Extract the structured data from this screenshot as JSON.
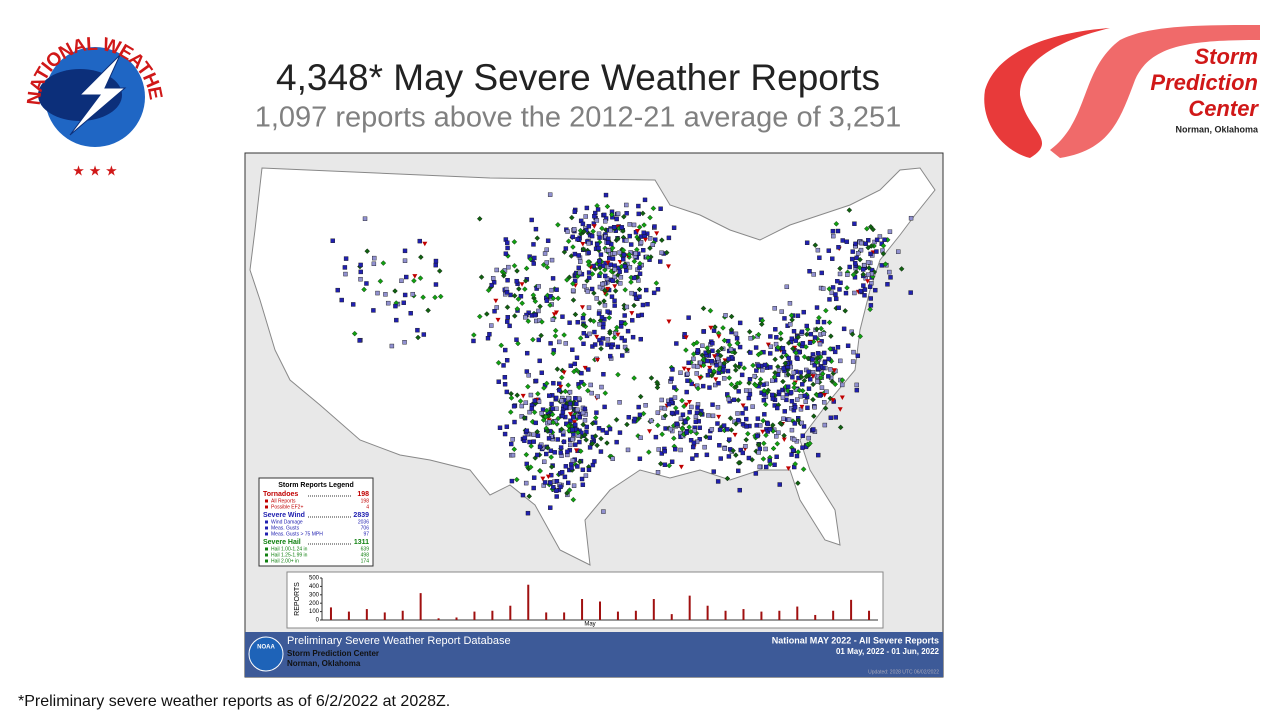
{
  "header": {
    "title": "4,348* May Severe Weather Reports",
    "subtitle": "1,097 reports above the 2012-21 average of 3,251"
  },
  "nws_logo": {
    "ring": "NATIONAL WEATHER SERVICE"
  },
  "spc_logo": {
    "lines": [
      "Storm",
      "Prediction",
      "Center"
    ],
    "location": "Norman, Oklahoma"
  },
  "legend": {
    "title": "Storm Reports Legend",
    "groups": [
      {
        "label": "Tornadoes",
        "count": 198,
        "color": "#c00000",
        "items": [
          {
            "label": "All Reports",
            "count": 198
          },
          {
            "label": "Possible EF2+",
            "count": 4
          }
        ]
      },
      {
        "label": "Severe Wind",
        "count": 2839,
        "color": "#2020b0",
        "items": [
          {
            "label": "Wind Damage",
            "count": 2036
          },
          {
            "label": "Meas. Gusts",
            "count": 706
          },
          {
            "label": "Meas. Gusts > 75 MPH",
            "count": 97
          }
        ]
      },
      {
        "label": "Severe Hail",
        "count": 1311,
        "color": "#108010",
        "items": [
          {
            "label": "Hail 1.00-1.24 in",
            "count": 639
          },
          {
            "label": "Hail 1.25-1.99 in",
            "count": 498
          },
          {
            "label": "Hail 2.00+ in",
            "count": 174
          }
        ]
      }
    ]
  },
  "chart_data": {
    "type": "bar",
    "ylabel": "REPORTS",
    "xlabel": "May",
    "color": "#a01010",
    "values": [
      150,
      100,
      130,
      90,
      110,
      320,
      20,
      30,
      100,
      110,
      170,
      420,
      90,
      90,
      250,
      220,
      100,
      110,
      250,
      70,
      290,
      170,
      110,
      130,
      100,
      110,
      160,
      60,
      110,
      240,
      110
    ],
    "ylim": [
      0,
      500
    ],
    "yticks": [
      0,
      100,
      200,
      300,
      400,
      500
    ],
    "grid": false
  },
  "footer": {
    "database": "Preliminary Severe Weather Report Database",
    "center": "Storm Prediction Center",
    "city": "Norman, Oklahoma",
    "noaa": "NOAA",
    "scope": "National MAY 2022 - All Severe Reports",
    "range": "01 May, 2022 - 01 Jun, 2022",
    "updated": "Updated: 2028 UTC 06/02/2022"
  },
  "note": "*Preliminary severe weather reports as of 6/2/2022 at 2028Z."
}
